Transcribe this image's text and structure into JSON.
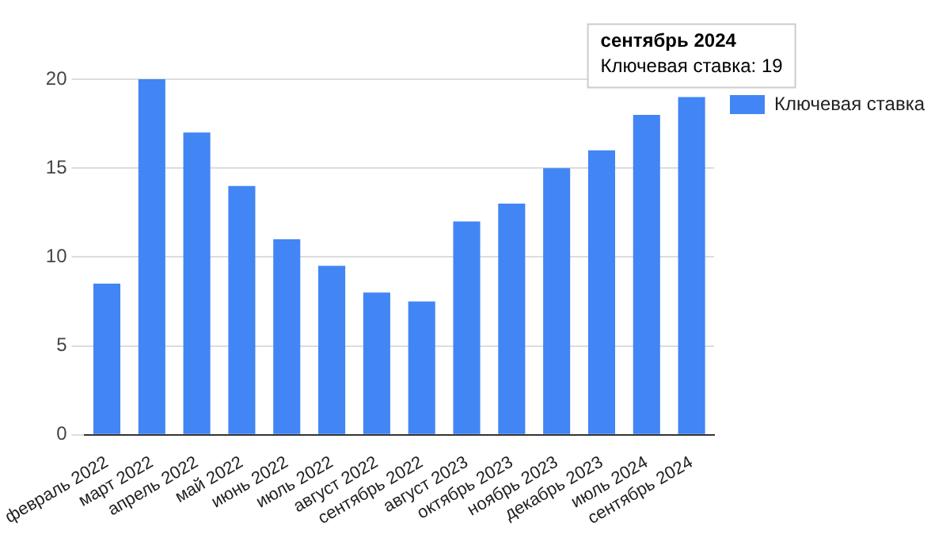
{
  "chart_data": {
    "type": "bar",
    "categories": [
      "февраль 2022",
      "март 2022",
      "апрель 2022",
      "май 2022",
      "июнь 2022",
      "июль 2022",
      "август 2022",
      "сентябрь 2022",
      "август 2023",
      "октябрь 2023",
      "ноябрь 2023",
      "декабрь 2023",
      "июль 2024",
      "сентябрь 2024"
    ],
    "series": [
      {
        "name": "Ключевая ставка",
        "color": "#4285f4",
        "values": [
          8.5,
          20,
          17,
          14,
          11,
          9.5,
          8,
          7.5,
          12,
          13,
          15,
          16,
          18,
          19
        ]
      }
    ],
    "ylim": [
      0,
      20
    ],
    "yticks": [
      0,
      5,
      10,
      15,
      20
    ],
    "grid": "y",
    "legend": "right",
    "annotations": [
      {
        "text": "сентябрь 2024\nКлючевая ставка: 19",
        "x": "сентябрь 2024",
        "y": 19
      }
    ]
  }
}
